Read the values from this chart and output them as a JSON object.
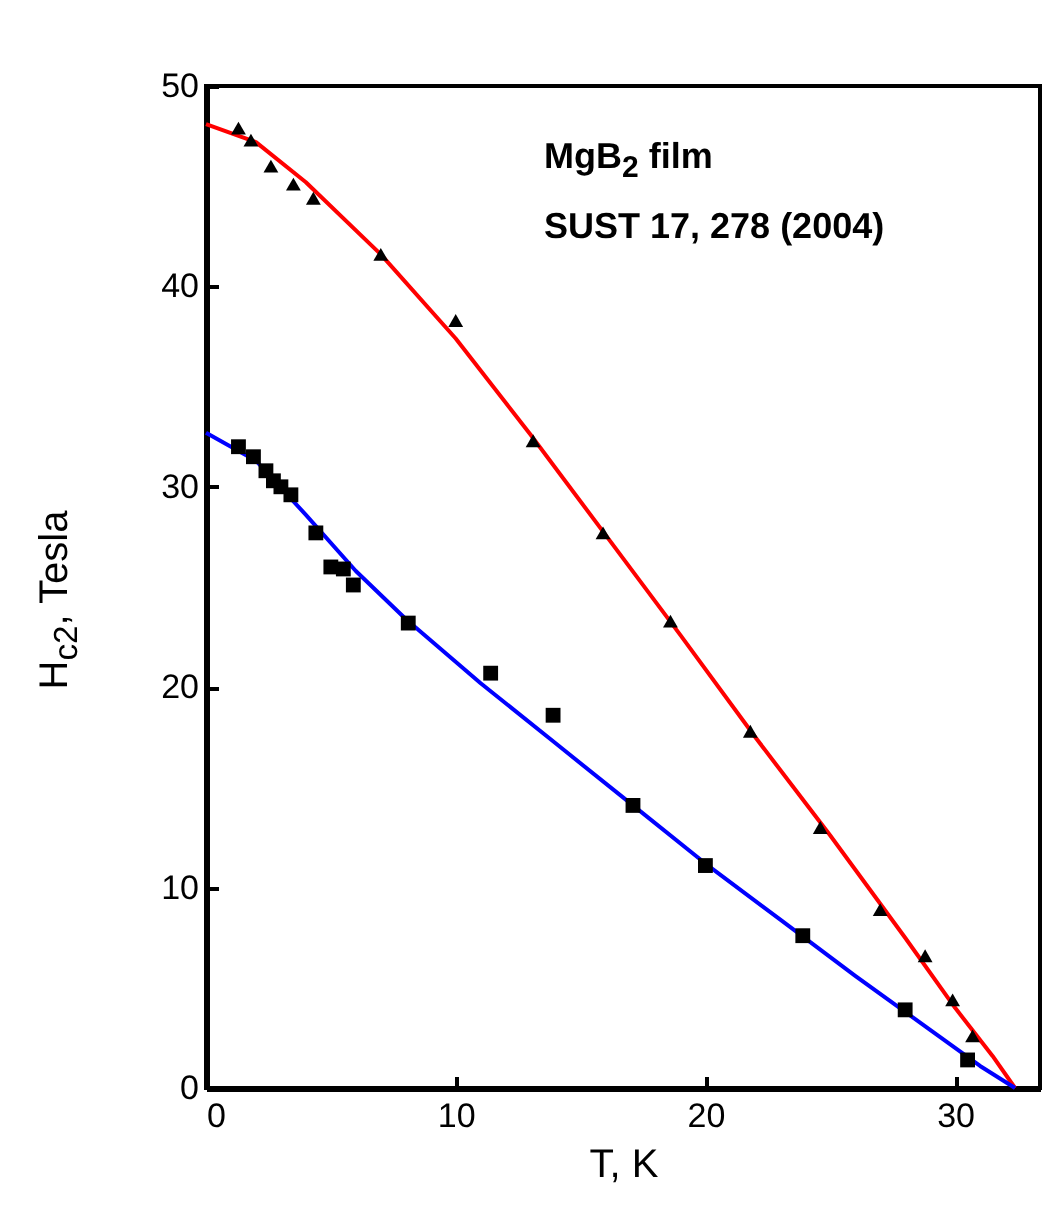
{
  "chart_data": {
    "type": "scatter",
    "xlabel": "T, K",
    "ylabel": "H$_{c2}$, Tesla",
    "annotations": [
      "MgB$_{2}$  film",
      "SUST 17, 278 (2004)"
    ],
    "xlim": [
      0,
      33.4
    ],
    "ylim": [
      0,
      50
    ],
    "xticks": [
      0,
      10,
      20,
      30
    ],
    "yticks": [
      0,
      10,
      20,
      30,
      40,
      50
    ],
    "grid": false,
    "series": [
      {
        "type": "line",
        "color": "#ff0000",
        "line_style": "solid",
        "marker": "none",
        "x": [
          0,
          2,
          4,
          7,
          10,
          13,
          16,
          19,
          22,
          25,
          28,
          30,
          31.5,
          32.4
        ],
        "values": [
          48.1,
          47.2,
          45.2,
          41.6,
          37.4,
          32.6,
          27.6,
          22.6,
          17.5,
          12.6,
          7.5,
          4.0,
          1.6,
          0
        ]
      },
      {
        "type": "line",
        "color": "#0000ff",
        "line_style": "solid",
        "marker": "none",
        "x": [
          0,
          2,
          4,
          6,
          8,
          11,
          14,
          17,
          20,
          23,
          26,
          29,
          31,
          32.4
        ],
        "values": [
          32.7,
          31.3,
          28.6,
          25.8,
          23.4,
          20.2,
          17.2,
          14.2,
          11.2,
          8.4,
          5.6,
          2.9,
          1.1,
          0
        ]
      },
      {
        "type": "scatter",
        "color": "#000000",
        "marker": "triangle",
        "x": [
          1.3,
          1.8,
          2.6,
          3.5,
          4.3,
          7.0,
          10.0,
          13.1,
          15.9,
          18.6,
          21.8,
          24.6,
          27.0,
          28.8,
          29.9,
          30.7
        ],
        "values": [
          47.9,
          47.3,
          46.0,
          45.1,
          44.4,
          41.6,
          38.3,
          32.3,
          27.7,
          23.3,
          17.8,
          13.0,
          8.9,
          6.6,
          4.4,
          2.6
        ]
      },
      {
        "type": "scatter",
        "color": "#000000",
        "marker": "square",
        "x": [
          1.3,
          1.9,
          2.4,
          2.7,
          3.0,
          3.4,
          4.4,
          5.0,
          5.5,
          5.9,
          8.1,
          11.4,
          13.9,
          17.1,
          20.0,
          23.9,
          28.0,
          30.5
        ],
        "values": [
          32.0,
          31.5,
          30.8,
          30.3,
          30.0,
          29.6,
          27.7,
          26.0,
          25.9,
          25.1,
          23.2,
          20.7,
          18.6,
          14.1,
          11.1,
          7.6,
          3.9,
          1.4
        ]
      }
    ]
  }
}
